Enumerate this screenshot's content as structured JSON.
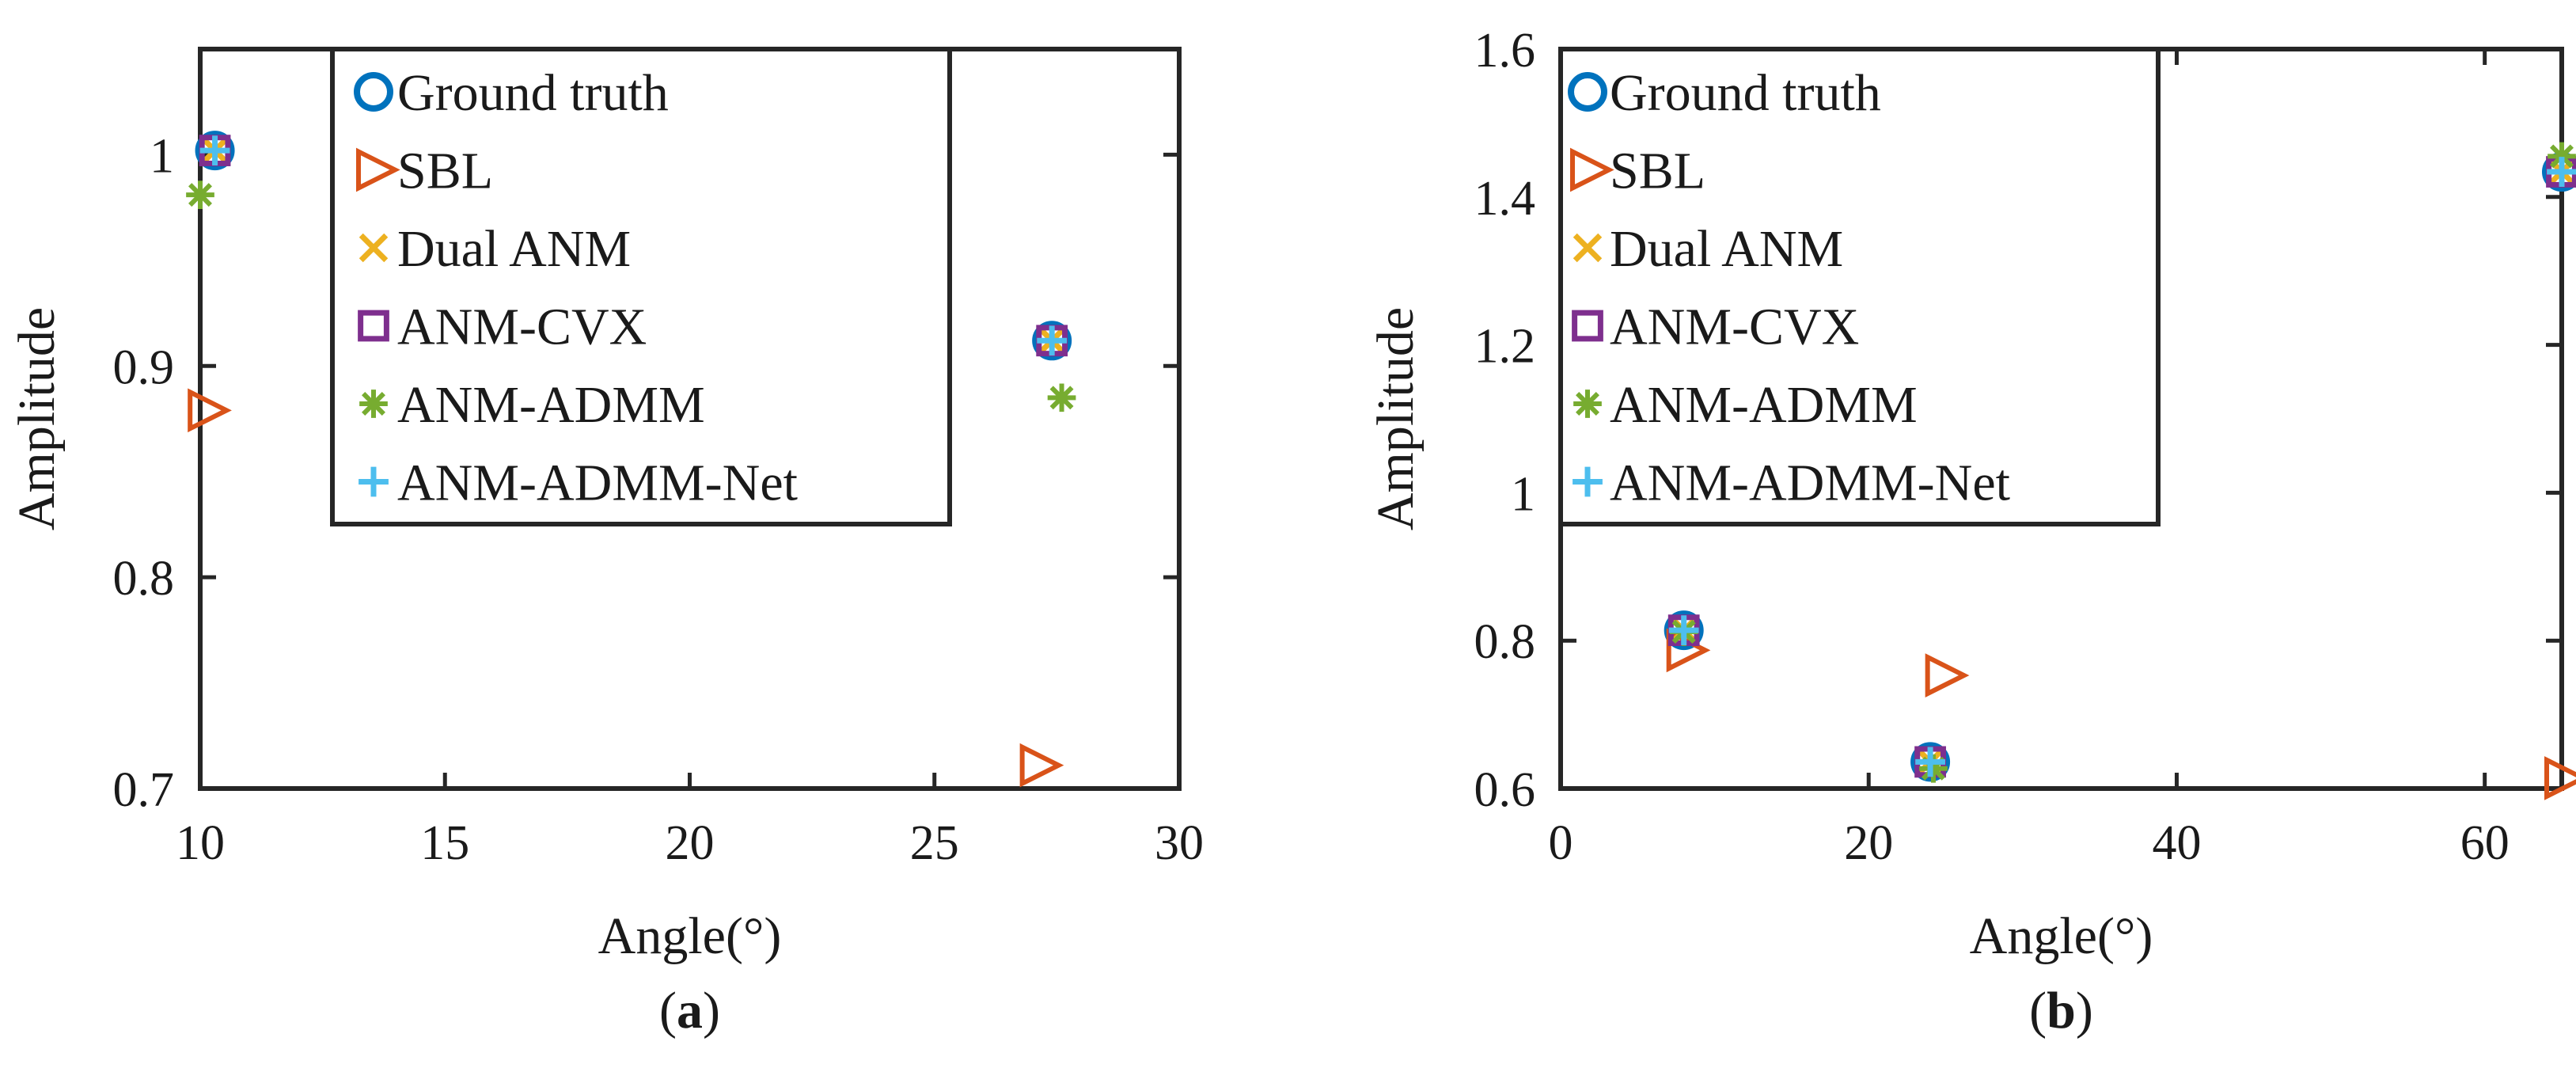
{
  "chart_data": [
    {
      "type": "scatter",
      "panel_label": "(a)",
      "caption_letter": "a",
      "xlabel": "Angle(°)",
      "ylabel": "Amplitude",
      "xlim": [
        10,
        30
      ],
      "ylim": [
        0.7,
        1.05
      ],
      "xticks": [
        10,
        15,
        20,
        25,
        30
      ],
      "yticks": [
        0.7,
        0.8,
        0.9,
        1
      ],
      "xtick_labels": [
        "10",
        "15",
        "20",
        "25",
        "30"
      ],
      "ytick_labels": [
        "0.7",
        "0.8",
        "0.9",
        "1"
      ],
      "legend_position": "top-left",
      "series": [
        {
          "name": "Ground truth",
          "marker": "circle",
          "color": "#0072BD",
          "points": [
            [
              10.3,
              1.002
            ],
            [
              27.4,
              0.912
            ]
          ]
        },
        {
          "name": "SBL",
          "marker": "triangle-right",
          "color": "#D95319",
          "points": [
            [
              10.1,
              0.879
            ],
            [
              27.1,
              0.711
            ]
          ]
        },
        {
          "name": "Dual ANM",
          "marker": "x",
          "color": "#EDB120",
          "points": [
            [
              10.3,
              1.002
            ],
            [
              27.4,
              0.912
            ]
          ]
        },
        {
          "name": "ANM-CVX",
          "marker": "square",
          "color": "#7E2F8E",
          "points": [
            [
              10.3,
              1.002
            ],
            [
              27.4,
              0.912
            ]
          ]
        },
        {
          "name": "ANM-ADMM",
          "marker": "asterisk",
          "color": "#77AC30",
          "points": [
            [
              10.0,
              0.981
            ],
            [
              27.6,
              0.885
            ]
          ]
        },
        {
          "name": "ANM-ADMM-Net",
          "marker": "plus",
          "color": "#4DBEEE",
          "points": [
            [
              10.3,
              1.002
            ],
            [
              27.4,
              0.912
            ]
          ]
        }
      ]
    },
    {
      "type": "scatter",
      "panel_label": "(b)",
      "caption_letter": "b",
      "xlabel": "Angle(°)",
      "ylabel": "Amplitude",
      "xlim": [
        0,
        65
      ],
      "ylim": [
        0.6,
        1.6
      ],
      "xticks": [
        0,
        20,
        40,
        60
      ],
      "yticks": [
        0.6,
        0.8,
        1,
        1.2,
        1.4,
        1.6
      ],
      "xtick_labels": [
        "0",
        "20",
        "40",
        "60"
      ],
      "ytick_labels": [
        "0.6",
        "0.8",
        "1",
        "1.2",
        "1.4",
        "1.6"
      ],
      "legend_position": "top-left",
      "series": [
        {
          "name": "Ground truth",
          "marker": "circle",
          "color": "#0072BD",
          "points": [
            [
              8.0,
              0.814
            ],
            [
              24.0,
              0.636
            ],
            [
              65.0,
              1.434
            ]
          ]
        },
        {
          "name": "SBL",
          "marker": "triangle-right",
          "color": "#D95319",
          "points": [
            [
              8.0,
              0.787
            ],
            [
              24.8,
              0.753
            ],
            [
              65.0,
              0.614
            ]
          ]
        },
        {
          "name": "Dual ANM",
          "marker": "x",
          "color": "#EDB120",
          "points": [
            [
              8.0,
              0.814
            ],
            [
              24.0,
              0.636
            ],
            [
              65.0,
              1.434
            ]
          ]
        },
        {
          "name": "ANM-CVX",
          "marker": "square",
          "color": "#7E2F8E",
          "points": [
            [
              8.0,
              0.814
            ],
            [
              24.0,
              0.636
            ],
            [
              65.0,
              1.434
            ]
          ]
        },
        {
          "name": "ANM-ADMM",
          "marker": "asterisk",
          "color": "#77AC30",
          "points": [
            [
              8.0,
              0.812
            ],
            [
              24.2,
              0.627
            ],
            [
              65.0,
              1.455
            ]
          ]
        },
        {
          "name": "ANM-ADMM-Net",
          "marker": "plus",
          "color": "#4DBEEE",
          "points": [
            [
              8.0,
              0.814
            ],
            [
              24.0,
              0.636
            ],
            [
              65.0,
              1.434
            ]
          ]
        }
      ]
    }
  ]
}
